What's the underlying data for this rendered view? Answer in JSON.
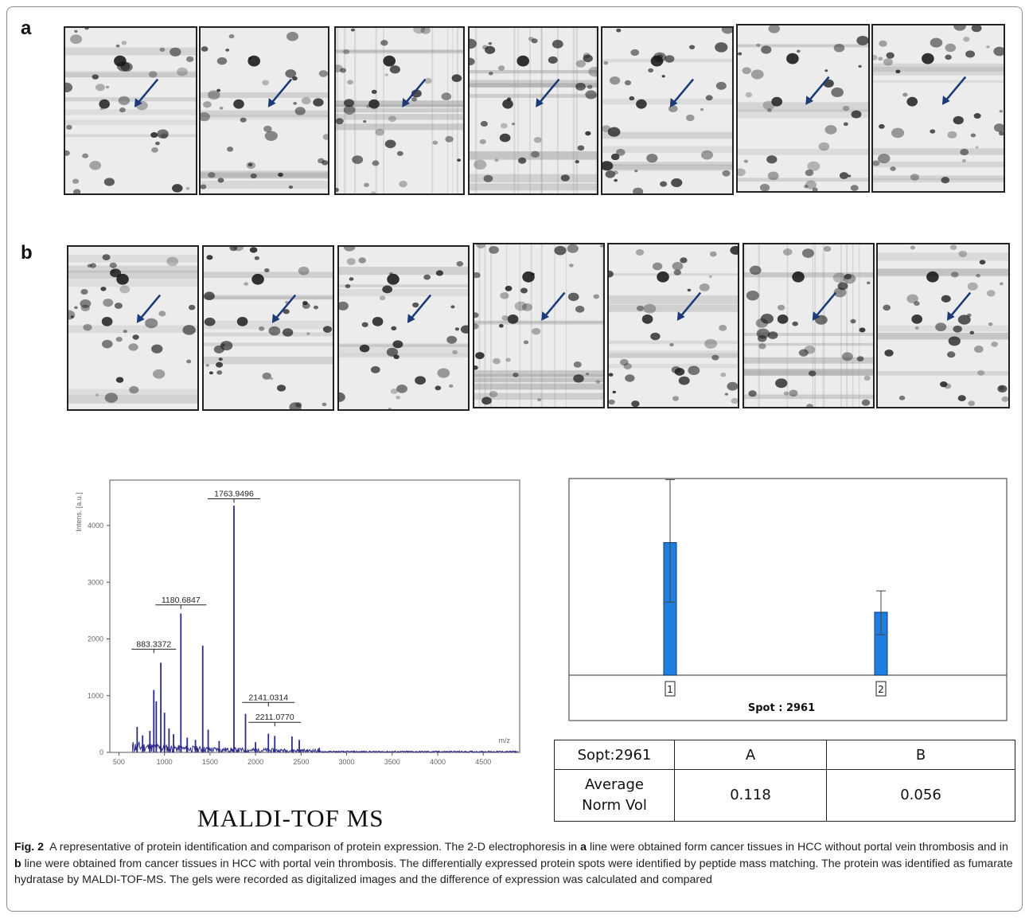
{
  "panels": {
    "a": {
      "label": "a"
    },
    "b": {
      "label": "b"
    }
  },
  "ms_title": "MALDI-TOF  MS",
  "chart_data": [
    {
      "type": "line",
      "title": "",
      "xlabel": "m/z",
      "ylabel": "Intens. [a.u.]",
      "xlim": [
        400,
        4900
      ],
      "ylim": [
        0,
        4800
      ],
      "xticks": [
        500,
        1000,
        1500,
        2000,
        2500,
        3000,
        3500,
        4000,
        4500
      ],
      "yticks": [
        0,
        1000,
        2000,
        3000,
        4000
      ],
      "peaks": [
        {
          "x": 700,
          "y": 450
        },
        {
          "x": 760,
          "y": 300
        },
        {
          "x": 840,
          "y": 380
        },
        {
          "x": 883,
          "y": 1100
        },
        {
          "x": 910,
          "y": 900
        },
        {
          "x": 960,
          "y": 1580
        },
        {
          "x": 1000,
          "y": 700
        },
        {
          "x": 1050,
          "y": 420
        },
        {
          "x": 1100,
          "y": 320
        },
        {
          "x": 1180,
          "y": 2450
        },
        {
          "x": 1250,
          "y": 260
        },
        {
          "x": 1340,
          "y": 220
        },
        {
          "x": 1420,
          "y": 1880
        },
        {
          "x": 1480,
          "y": 400
        },
        {
          "x": 1600,
          "y": 200
        },
        {
          "x": 1763,
          "y": 4350
        },
        {
          "x": 1890,
          "y": 680
        },
        {
          "x": 2000,
          "y": 180
        },
        {
          "x": 2141,
          "y": 330
        },
        {
          "x": 2211,
          "y": 290
        },
        {
          "x": 2400,
          "y": 280
        },
        {
          "x": 2480,
          "y": 220
        },
        {
          "x": 2700,
          "y": 80
        }
      ],
      "peak_labels": [
        {
          "label": "1763.9496",
          "x": 1763
        },
        {
          "label": "1180.6847",
          "x": 1180
        },
        {
          "label": "883.3372",
          "x": 883
        },
        {
          "label": "2141.0314",
          "x": 2141
        },
        {
          "label": "2211.0770",
          "x": 2211
        }
      ],
      "color": "#2b2b8a"
    },
    {
      "type": "bar",
      "title": "",
      "xlabel": "Spot : 2961",
      "categories": [
        "1",
        "2"
      ],
      "values": [
        0.118,
        0.056
      ],
      "error_low": [
        0.065,
        0.036
      ],
      "error_high": [
        0.174,
        0.075
      ],
      "ylim": [
        0,
        0.175
      ],
      "color": "#1f7fe0"
    }
  ],
  "table": {
    "header": [
      "Sopt:2961",
      "A",
      "B"
    ],
    "row_label_line1": "Average",
    "row_label_line2": "Norm Vol",
    "values": [
      "0.118",
      "0.056"
    ]
  },
  "caption": {
    "fig_label": "Fig. 2",
    "text_1": "A representative of protein identification and comparison of protein expression. The 2-D electrophoresis in ",
    "bold_a": "a",
    "text_2": " line were obtained form cancer tissues in HCC without portal vein thrombosis and in ",
    "bold_b": "b",
    "text_3": " line were obtained from cancer tissues in HCC with portal vein thrombosis. The differentially expressed protein spots were identified by peptide mass matching. The protein was identified as fumarate hydratase by MALDI-TOF-MS. The gels were recorded as digitalized images and the difference of expression was calculated and compared"
  },
  "colors": {
    "arrow": "#1a3a78",
    "ms_line": "#2b2b8a",
    "bar": "#1f7fe0"
  }
}
